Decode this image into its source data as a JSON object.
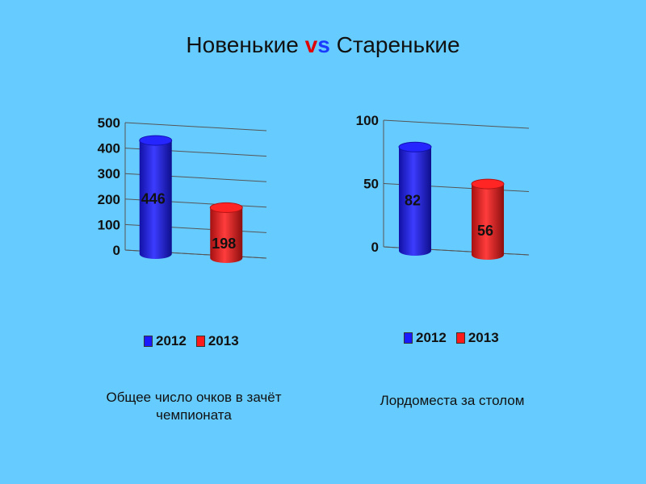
{
  "title": {
    "left": "Новенькие",
    "vs_v": "v",
    "vs_s": "s",
    "right": "Старенькие"
  },
  "colors": {
    "background": "#66ccff",
    "series_2012": "#1a1aff",
    "series_2013": "#ff1a1a"
  },
  "captions": {
    "chart1": "Общее число очков в зачёт чемпионата",
    "chart2": "Лордоместа за столом"
  },
  "chart_data": [
    {
      "type": "bar",
      "style": "3d-cylinder",
      "categories": [
        "2012",
        "2013"
      ],
      "values": [
        446,
        198
      ],
      "ylim": [
        0,
        500
      ],
      "yticks": [
        0,
        100,
        200,
        300,
        400,
        500
      ],
      "legend": [
        "2012",
        "2013"
      ],
      "legend_position": "bottom",
      "xlabel": "Общее число очков в зачёт чемпионата"
    },
    {
      "type": "bar",
      "style": "3d-cylinder",
      "categories": [
        "2012",
        "2013"
      ],
      "values": [
        82,
        56
      ],
      "ylim": [
        0,
        100
      ],
      "yticks": [
        0,
        50,
        100
      ],
      "legend": [
        "2012",
        "2013"
      ],
      "legend_position": "bottom",
      "xlabel": "Лордоместа за столом"
    }
  ]
}
